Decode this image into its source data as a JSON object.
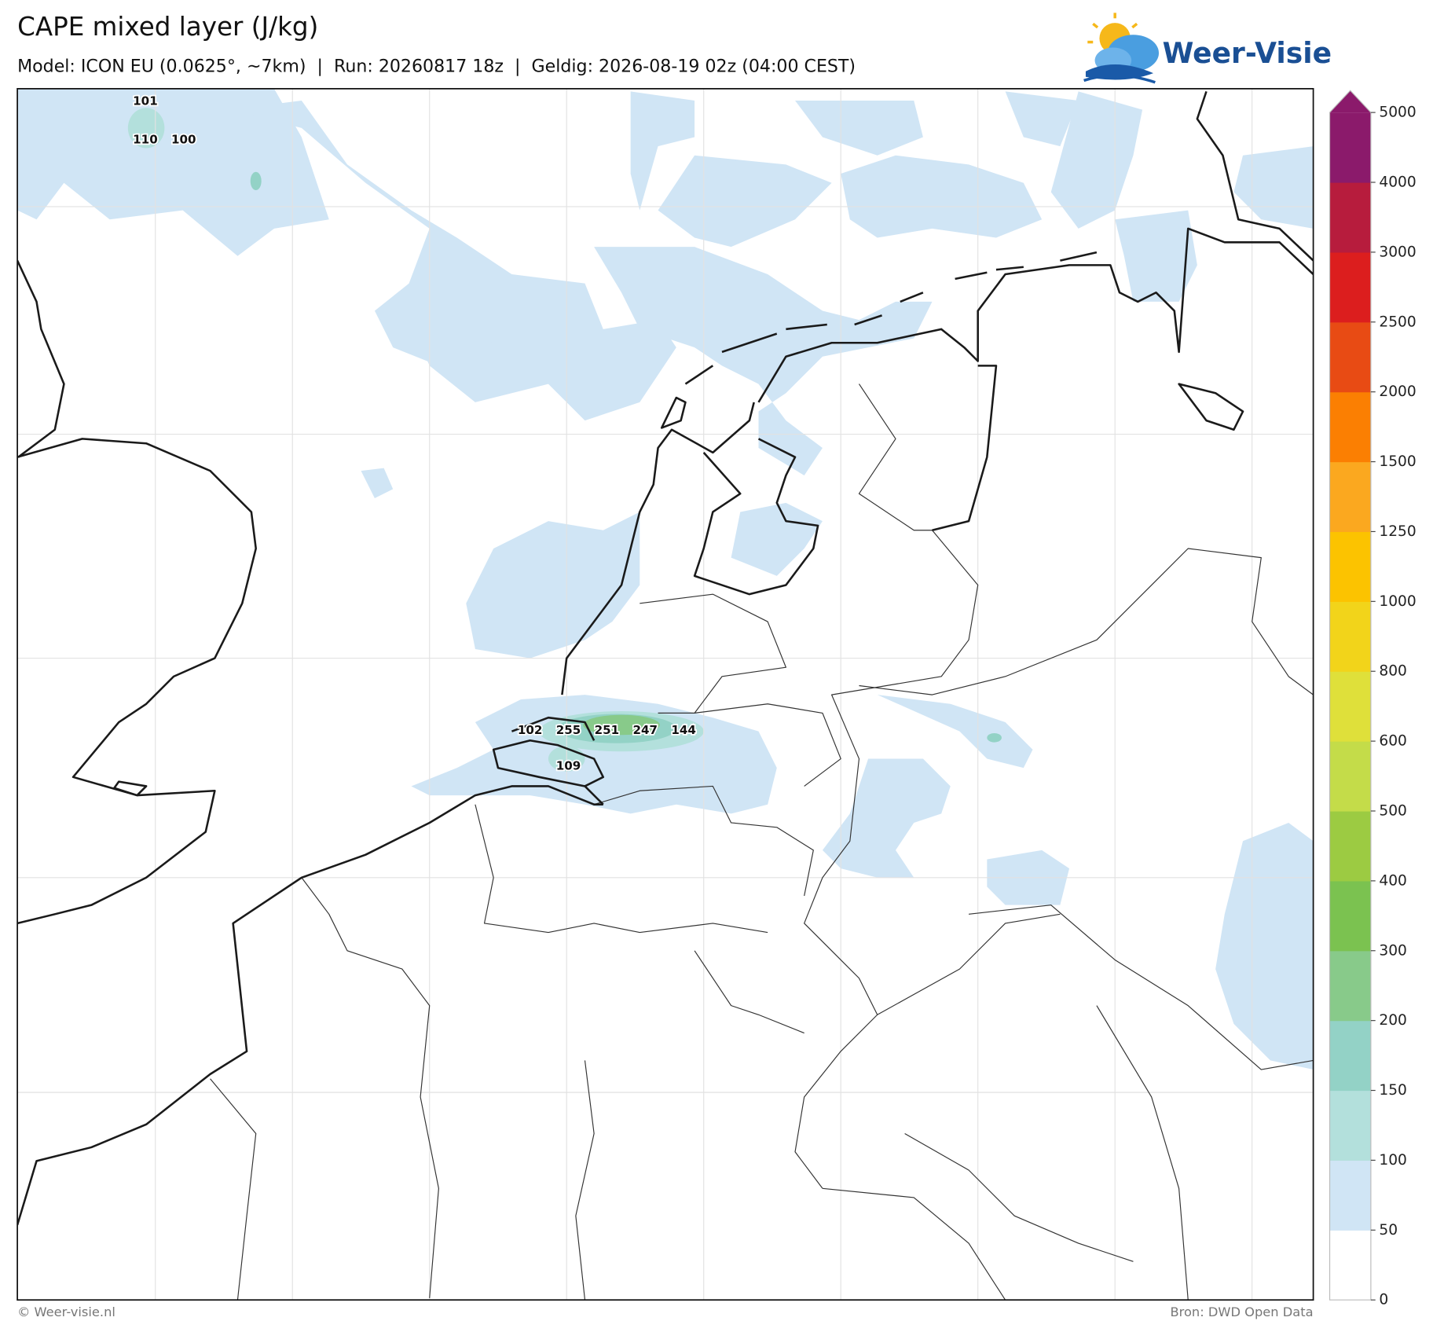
{
  "header": {
    "title": "CAPE mixed layer (J/kg)",
    "subtitle": "Model: ICON EU (0.0625°, ~7km)  |  Run: 20260817 18z  |  Geldig: 2026-08-19 02z (04:00 CEST)"
  },
  "logo": {
    "text": "Weer-Visie"
  },
  "map_labels": [
    101,
    110,
    100,
    102,
    255,
    251,
    247,
    144,
    109
  ],
  "colorbar": {
    "ticks": [
      0,
      50,
      100,
      150,
      200,
      300,
      400,
      500,
      600,
      800,
      1000,
      1250,
      1500,
      2000,
      2500,
      3000,
      4000,
      5000
    ],
    "colors": [
      "#ffffff",
      "#d0e5f5",
      "#b3e0dc",
      "#93d2c6",
      "#88ca8a",
      "#7bc250",
      "#9ccb42",
      "#c4dc49",
      "#dfe03a",
      "#f2d41a",
      "#fcc300",
      "#fba81f",
      "#fb7f02",
      "#e84b14",
      "#dc1e1e",
      "#b71c3d",
      "#8b1a6b"
    ]
  },
  "footer": {
    "left": "© Weer-visie.nl",
    "right": "Bron: DWD Open Data"
  }
}
